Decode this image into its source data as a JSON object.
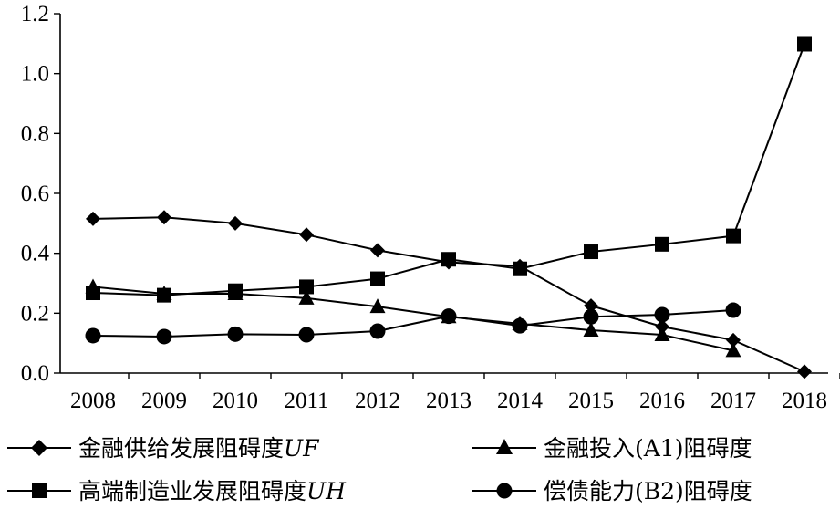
{
  "chart_data": {
    "type": "line",
    "title": "",
    "xlabel": "",
    "ylabel": "",
    "ylim": [
      0,
      1.2
    ],
    "yticks": [
      "0.0",
      "0.2",
      "0.4",
      "0.6",
      "0.8",
      "1.0",
      "1.2"
    ],
    "categories": [
      "2008",
      "2009",
      "2010",
      "2011",
      "2012",
      "2013",
      "2014",
      "2015",
      "2016",
      "2017",
      "2018"
    ],
    "grid": false,
    "legend_position": "bottom",
    "series": [
      {
        "name": "金融供给发展阻碍度",
        "name_suffix": "UF",
        "marker": "diamond",
        "color": "#000000",
        "values": [
          0.515,
          0.52,
          0.5,
          0.462,
          0.41,
          0.37,
          0.357,
          0.225,
          0.155,
          0.11,
          0.005
        ]
      },
      {
        "name": "金融投入(A1)阻碍度",
        "name_suffix": "",
        "marker": "triangle",
        "color": "#000000",
        "values": [
          0.288,
          0.265,
          0.265,
          0.25,
          0.222,
          0.188,
          0.165,
          0.143,
          0.128,
          0.075,
          null
        ]
      },
      {
        "name": "高端制造业发展阻碍度",
        "name_suffix": "UH",
        "marker": "square",
        "color": "#000000",
        "values": [
          0.268,
          0.26,
          0.275,
          0.288,
          0.315,
          0.38,
          0.348,
          0.405,
          0.43,
          0.458,
          1.098
        ]
      },
      {
        "name": "偿债能力(B2)阻碍度",
        "name_suffix": "",
        "marker": "circle",
        "color": "#000000",
        "values": [
          0.125,
          0.122,
          0.13,
          0.128,
          0.14,
          0.19,
          0.158,
          0.188,
          0.195,
          0.21,
          null
        ]
      }
    ]
  }
}
